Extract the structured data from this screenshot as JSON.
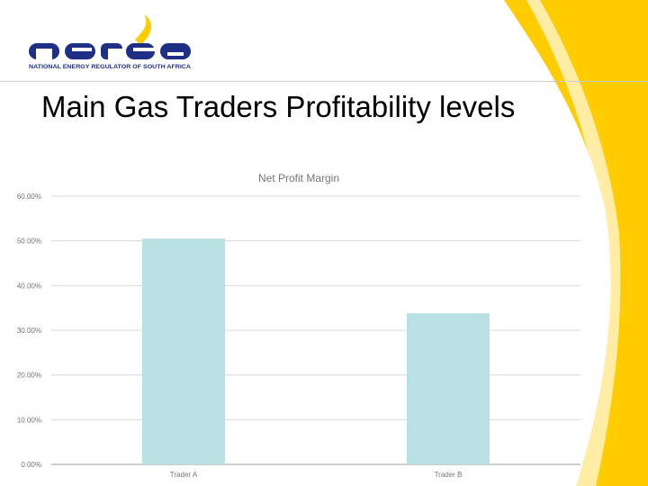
{
  "logo": {
    "wordmark": "nersa",
    "tagline": "NATIONAL ENERGY REGULATOR OF SOUTH AFRICA"
  },
  "slide": {
    "title": "Main Gas Traders Profitability levels"
  },
  "colors": {
    "brand_navy": "#1f2f86",
    "brand_yellow": "#ffcc00",
    "bar": "#b9e0e3",
    "grid": "#dadada"
  },
  "chart_data": {
    "type": "bar",
    "title": "Net Profit Margin",
    "categories": [
      "Trader A",
      "Trader B"
    ],
    "values": [
      0.505,
      0.338
    ],
    "ylim": [
      0,
      0.6
    ],
    "yticks": [
      "0.00%",
      "10.00%",
      "20.00%",
      "30.00%",
      "40.00%",
      "50.00%",
      "60.00%"
    ],
    "grid": true,
    "legend": "none"
  }
}
